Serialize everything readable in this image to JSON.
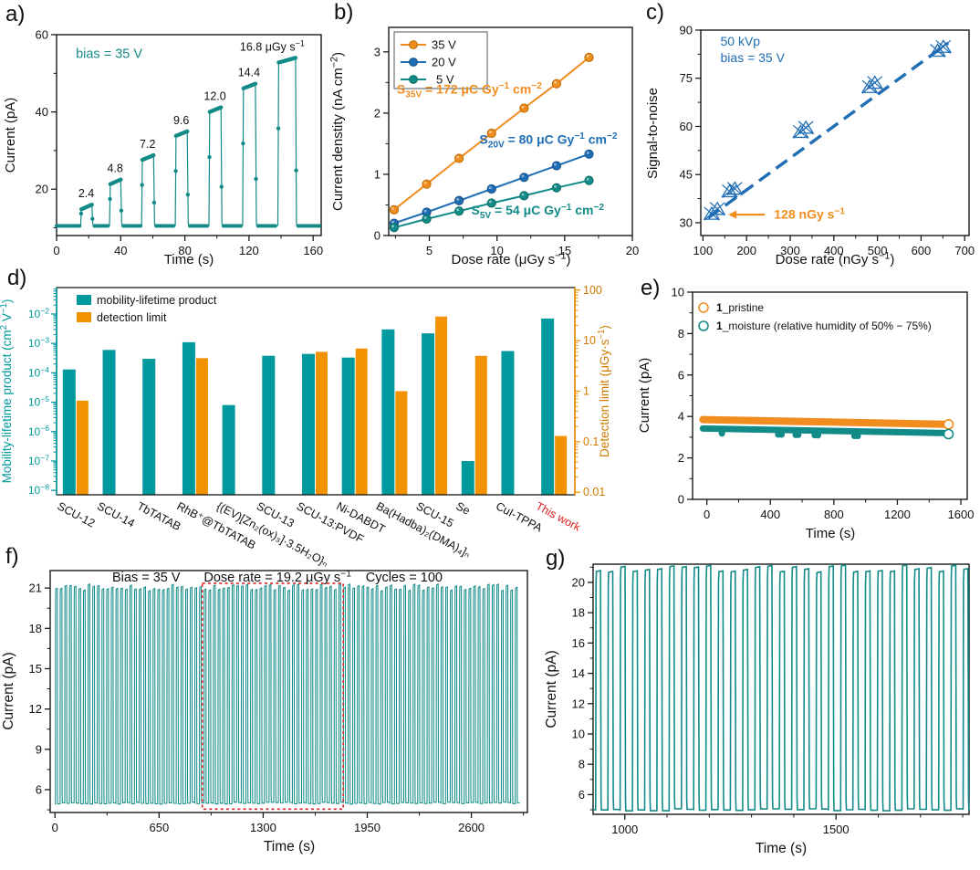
{
  "colors": {
    "teal": "#128b88",
    "teal_bar": "#009a9e",
    "orange": "#f18c1f",
    "orange_bar": "#f29200",
    "blue": "#1f6db5",
    "red": "#e02020",
    "text": "#111111"
  },
  "chart_data": [
    {
      "id": "a",
      "letter": "a)",
      "type": "line-pulses",
      "xlabel": "Time (s)",
      "ylabel": "Current (pA)",
      "xlim": [
        0,
        165
      ],
      "ylim": [
        8,
        60
      ],
      "xticks": [
        0,
        40,
        80,
        120,
        160
      ],
      "xminors": [
        20,
        60,
        100,
        140
      ],
      "yticks": [
        20,
        40,
        60
      ],
      "yminors": [
        10,
        30,
        50
      ],
      "annotation": {
        "text": "bias = 35 V",
        "x": 12,
        "y": 54
      },
      "baseline": 10.5,
      "pulses": [
        {
          "start": 15,
          "end": 22,
          "peak": 16,
          "label": [
            {
              "t": "2.4"
            }
          ]
        },
        {
          "start": 33,
          "end": 40,
          "peak": 22.5,
          "label": [
            {
              "t": "4.8"
            }
          ]
        },
        {
          "start": 53,
          "end": 60.5,
          "peak": 28.8,
          "label": [
            {
              "t": "7.2"
            }
          ]
        },
        {
          "start": 74,
          "end": 81.5,
          "peak": 35,
          "label": [
            {
              "t": "9.6"
            }
          ]
        },
        {
          "start": 95,
          "end": 102.5,
          "peak": 41.2,
          "label": [
            {
              "t": "12.0"
            }
          ]
        },
        {
          "start": 116,
          "end": 124,
          "peak": 47.3,
          "label": [
            {
              "t": "14.4"
            }
          ]
        },
        {
          "start": 138,
          "end": 149,
          "peak": 54,
          "label": [
            {
              "t": "16.8 μGy s"
            },
            {
              "t": "−1",
              "sup": true
            }
          ]
        }
      ]
    },
    {
      "id": "b",
      "letter": "b)",
      "type": "line",
      "xlabel": [
        {
          "t": "Dose rate (μGy s"
        },
        {
          "t": "−1",
          "sup": true
        },
        {
          "t": ")"
        }
      ],
      "ylabel": [
        {
          "t": "Current denstity (nA cm"
        },
        {
          "t": "−2",
          "sup": true
        },
        {
          "t": ")"
        }
      ],
      "xlim": [
        2,
        20
      ],
      "ylim": [
        0,
        3.4
      ],
      "xticks": [
        5,
        10,
        15,
        20
      ],
      "xminors": [
        2.5,
        7.5,
        12.5,
        17.5
      ],
      "yticks": [
        0,
        1,
        2,
        3
      ],
      "yminors": [
        0.5,
        1.5,
        2.5
      ],
      "x": [
        2.4,
        4.8,
        7.2,
        9.6,
        12,
        14.4,
        16.8
      ],
      "series": [
        {
          "name": "35 V",
          "color": "orange",
          "values": [
            0.42,
            0.84,
            1.26,
            1.67,
            2.08,
            2.48,
            2.91
          ]
        },
        {
          "name": "20 V",
          "color": "blue",
          "values": [
            0.2,
            0.38,
            0.57,
            0.76,
            0.95,
            1.14,
            1.33
          ]
        },
        {
          "name": "5 V",
          "color": "teal",
          "values": [
            0.13,
            0.27,
            0.4,
            0.53,
            0.65,
            0.78,
            0.9
          ]
        }
      ],
      "annotations": [
        {
          "parts": [
            {
              "t": "S"
            },
            {
              "t": "35V",
              "sub": true
            },
            {
              "t": " = 172 μC Gy"
            },
            {
              "t": "−1",
              "sup": true
            },
            {
              "t": " cm"
            },
            {
              "t": "−2",
              "sup": true
            }
          ],
          "color": "orange",
          "x": 2.6,
          "y": 2.32
        },
        {
          "parts": [
            {
              "t": "S"
            },
            {
              "t": "20V",
              "sub": true
            },
            {
              "t": " = 80 μC Gy"
            },
            {
              "t": "−1",
              "sup": true
            },
            {
              "t": " cm"
            },
            {
              "t": "−2",
              "sup": true
            }
          ],
          "color": "blue",
          "x": 8.7,
          "y": 1.5
        },
        {
          "parts": [
            {
              "t": "S"
            },
            {
              "t": "5V",
              "sub": true
            },
            {
              "t": " = 54 μC Gy"
            },
            {
              "t": "−1",
              "sup": true
            },
            {
              "t": " cm"
            },
            {
              "t": "−2",
              "sup": true
            }
          ],
          "color": "teal",
          "x": 8.1,
          "y": 0.34
        }
      ]
    },
    {
      "id": "c",
      "letter": "c)",
      "type": "scatter",
      "xlabel": [
        {
          "t": "Dose rate (nGy s"
        },
        {
          "t": "−1",
          "sup": true
        },
        {
          "t": ")"
        }
      ],
      "ylabel": "Signal-to-noise",
      "xlim": [
        95,
        710
      ],
      "ylim": [
        26,
        90
      ],
      "xticks": [
        100,
        200,
        300,
        400,
        500,
        600,
        700
      ],
      "xminors": [
        150,
        250,
        350,
        450,
        550,
        650
      ],
      "yticks": [
        30,
        45,
        60,
        75,
        90
      ],
      "yminors": [
        37.5,
        52.5,
        67.5,
        82.5
      ],
      "points": [
        [
          120,
          32.8
        ],
        [
          133,
          34.3
        ],
        [
          161,
          39.8
        ],
        [
          173,
          40.6
        ],
        [
          324,
          58.3
        ],
        [
          336,
          59.6
        ],
        [
          482,
          72.3
        ],
        [
          494,
          73.6
        ],
        [
          638,
          83.6
        ],
        [
          651,
          84.8
        ]
      ],
      "trend": [
        112,
        31.5,
        662,
        86
      ],
      "texts": [
        {
          "t": "50 kVp",
          "x": 140,
          "y": 85.2
        },
        {
          "t": "bias = 35 V",
          "x": 140,
          "y": 80
        }
      ],
      "arrow_annotation": {
        "parts": [
          {
            "t": "128 nGy s"
          },
          {
            "t": "−1",
            "sup": true
          }
        ],
        "tip": [
          158,
          32.5
        ],
        "tail": [
          242,
          32.5
        ]
      }
    },
    {
      "id": "d",
      "letter": "d)",
      "type": "bar-dual-log",
      "ylabel_left": [
        {
          "t": "Mobility-lifetime product (cm"
        },
        {
          "t": "2",
          "sup": true
        },
        {
          "t": " V"
        },
        {
          "t": "−1",
          "sup": true
        },
        {
          "t": ")"
        }
      ],
      "ylabel_right": [
        {
          "t": "Detection limit (μGy·s"
        },
        {
          "t": "−1",
          "sup": true
        },
        {
          "t": ")"
        }
      ],
      "left_exponents": [
        -2,
        -3,
        -4,
        -5,
        -6,
        -7,
        -8
      ],
      "left_log_range": [
        -8.15,
        -1.1
      ],
      "right_tick_labels": [
        "100",
        "10",
        "1",
        "0.1",
        "0.01"
      ],
      "right_tick_logs": [
        2,
        1,
        0,
        -1,
        -2
      ],
      "right_log_range": [
        -2.05,
        2.05
      ],
      "legend": [
        "mobility-lifetime product",
        "detection limit"
      ],
      "categories": [
        "SCU-12",
        "SCU-14",
        "TbTATAB",
        "RhB⁺@TbTATAB",
        "{(EV)[Zn₂(ox)₃]·3.5H₂O}ₙ",
        "SCU-13",
        "SCU-13:PVDF",
        "Ni-DABDT",
        "Ba(Hadba)₂(DMA)₄]ₙ",
        "SCU-15",
        "Se",
        "CuI-TPPA",
        "This work"
      ],
      "mu_tau": [
        0.00013,
        0.0006,
        0.0003,
        0.0011,
        8e-06,
        0.00038,
        0.00044,
        0.00033,
        0.003,
        0.0022,
        1e-07,
        0.00055,
        0.007
      ],
      "detection_limit": [
        0.65,
        null,
        null,
        4.5,
        null,
        null,
        6,
        7,
        1,
        30,
        5,
        null,
        0.13
      ],
      "last_category_color": "red"
    },
    {
      "id": "e",
      "letter": "e)",
      "type": "stability",
      "xlabel": "Time (s)",
      "ylabel": "Current (pA)",
      "xlim": [
        -90,
        1640
      ],
      "ylim": [
        0,
        10
      ],
      "xticks": [
        0,
        400,
        800,
        1200,
        1600
      ],
      "xminors": [
        200,
        600,
        1000,
        1400
      ],
      "yticks": [
        0,
        2,
        4,
        6,
        8,
        10
      ],
      "yminors": [
        1,
        3,
        5,
        7,
        9
      ],
      "series": [
        {
          "legend_bold": "1",
          "legend_rest": "_pristine",
          "color": "orange",
          "y_start": 3.85,
          "y_end": 3.62
        },
        {
          "legend_bold": "1",
          "legend_rest": "_moisture (relative humidity of 50% − 75%)",
          "color": "teal",
          "y_start": 3.42,
          "y_end": 3.2,
          "dips": [
            95,
            450,
            470,
            560,
            575,
            680,
            700,
            930,
            950
          ]
        }
      ]
    },
    {
      "id": "f",
      "letter": "f)",
      "type": "pulse-train",
      "xlabel": "Time (s)",
      "ylabel": "Current (pA)",
      "xlim": [
        -30,
        2950
      ],
      "ylim": [
        4.3,
        22.3
      ],
      "xticks": [
        0,
        650,
        1300,
        1950,
        2600
      ],
      "xminors": [
        325,
        975,
        1625,
        2275,
        2925
      ],
      "yticks": [
        6,
        9,
        12,
        15,
        18,
        21
      ],
      "yminors": [
        4.5,
        7.5,
        10.5,
        13.5,
        16.5,
        19.5
      ],
      "annotations": [
        {
          "parts": [
            {
              "t": "Bias = 35 V"
            }
          ],
          "x": 570,
          "y": 21.5
        },
        {
          "parts": [
            {
              "t": "Dose rate = 19.2 μGy s"
            },
            {
              "t": "−1",
              "sup": true
            }
          ],
          "x": 1390,
          "y": 21.5
        },
        {
          "parts": [
            {
              "t": "Cycles = 100"
            }
          ],
          "x": 2180,
          "y": 21.5
        }
      ],
      "wave": {
        "t0": 3,
        "period": 29,
        "on": 12,
        "high": 21,
        "low": 5,
        "cycles": 100
      },
      "highlight_box": [
        920,
        4.55,
        1800,
        21.35
      ]
    },
    {
      "id": "g",
      "letter": "g)",
      "type": "pulse-train",
      "xlabel": "Time (s)",
      "ylabel": "Current (pA)",
      "xlim": [
        925,
        1815
      ],
      "ylim": [
        4.7,
        21.2
      ],
      "xticks": [
        1000,
        1500
      ],
      "xminors": [
        1100,
        1200,
        1300,
        1400,
        1600,
        1700,
        1800
      ],
      "yticks": [
        6,
        8,
        10,
        12,
        14,
        16,
        18,
        20
      ],
      "yminors": [
        5,
        7,
        9,
        11,
        13,
        15,
        17,
        19,
        21
      ],
      "wave": {
        "t0": 3,
        "period": 29,
        "on": 12,
        "high": 20.85,
        "low": 5,
        "cycles": 100
      }
    }
  ]
}
